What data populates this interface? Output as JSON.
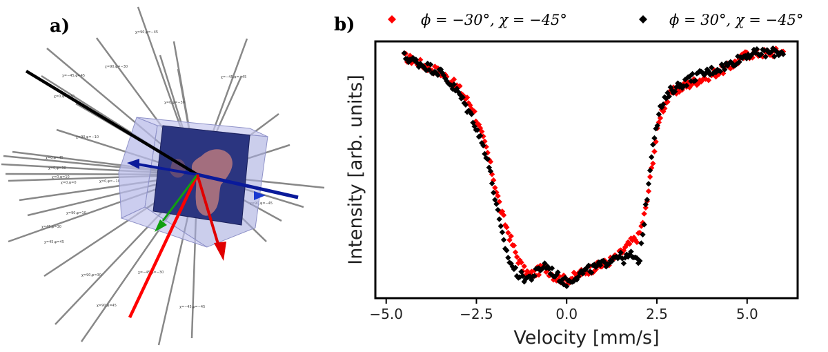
{
  "panel_a": {
    "label": "a)",
    "ray_labels": [
      "χ=90,φ=−45",
      "χ=90,φ=−30",
      "χ=−45,φ=45",
      "χ=0,φ=−30",
      "χ=−45,φ=−45",
      "χ=0,φ=−30",
      "χ=90,φ=−10",
      "χ=0,φ=45",
      "χ=0,φ=30",
      "χ=0,φ=10",
      "χ=0,φ=0",
      "χ=0,φ=−10",
      "χ=90,φ=10",
      "χ=45,φ=30",
      "χ=45,φ=45",
      "χ=90,φ=30",
      "χ=−45,φ=−30",
      "χ=90,φ=45",
      "χ=−45,φ=−45",
      "χ=90,φ=−45"
    ],
    "colors": {
      "black_beam": "#000000",
      "red_beam": "#ff0000",
      "arrow_red": "#e00000",
      "arrow_blue": "#0a1a9a",
      "arrow_green": "#10a010",
      "cube": "#9fa3e0",
      "sample": "#2a2f7a",
      "rays": "#888888"
    }
  },
  "panel_b": {
    "label": "b)",
    "legend": [
      {
        "text": "ϕ = −30°, χ = −45°",
        "color": "#ff0000"
      },
      {
        "text": "ϕ = 30°, χ = −45°",
        "color": "#000000"
      }
    ]
  },
  "chart_data": {
    "type": "scatter",
    "title": "",
    "xlabel": "Velocity [mm/s]",
    "ylabel": "Intensity [arb. units]",
    "xlim": [
      -5.3,
      6.4
    ],
    "ylim": [
      0,
      1
    ],
    "xticks": [
      -5.0,
      -2.5,
      0.0,
      2.5,
      5.0
    ],
    "xtick_labels": [
      "−5.0",
      "−2.5",
      "0.0",
      "2.5",
      "5.0"
    ],
    "y_tick_labels": false,
    "legend_position": "top, above plot",
    "grid": false,
    "series": [
      {
        "name": "ϕ = −30°, χ = −45°",
        "color": "#ff0000",
        "marker": "diamond",
        "x": [
          -4.5,
          -3.5,
          -3.0,
          -2.6,
          -2.2,
          -2.0,
          -1.8,
          -1.6,
          -1.4,
          -1.2,
          -1.0,
          -0.6,
          -0.3,
          0.0,
          0.3,
          0.6,
          1.0,
          1.4,
          1.8,
          2.0,
          2.2,
          2.4,
          2.6,
          2.9,
          3.5,
          4.5,
          5.0,
          6.0
        ],
        "y": [
          0.94,
          0.88,
          0.82,
          0.74,
          0.57,
          0.45,
          0.33,
          0.25,
          0.17,
          0.11,
          0.09,
          0.12,
          0.08,
          0.07,
          0.09,
          0.11,
          0.13,
          0.16,
          0.22,
          0.24,
          0.35,
          0.55,
          0.72,
          0.8,
          0.84,
          0.9,
          0.95,
          0.96
        ]
      },
      {
        "name": "ϕ = 30°, χ = −45°",
        "color": "#000000",
        "marker": "diamond",
        "x": [
          -4.5,
          -3.5,
          -3.0,
          -2.6,
          -2.2,
          -2.0,
          -1.8,
          -1.6,
          -1.4,
          -1.2,
          -1.0,
          -0.6,
          -0.3,
          0.0,
          0.3,
          0.6,
          1.0,
          1.4,
          1.6,
          1.8,
          2.0,
          2.2,
          2.4,
          2.6,
          2.9,
          3.5,
          4.5,
          5.0,
          6.0
        ],
        "y": [
          0.94,
          0.88,
          0.8,
          0.7,
          0.55,
          0.4,
          0.25,
          0.15,
          0.1,
          0.08,
          0.08,
          0.13,
          0.09,
          0.06,
          0.09,
          0.11,
          0.13,
          0.17,
          0.15,
          0.17,
          0.13,
          0.36,
          0.62,
          0.74,
          0.81,
          0.86,
          0.91,
          0.95,
          0.96
        ]
      }
    ]
  }
}
